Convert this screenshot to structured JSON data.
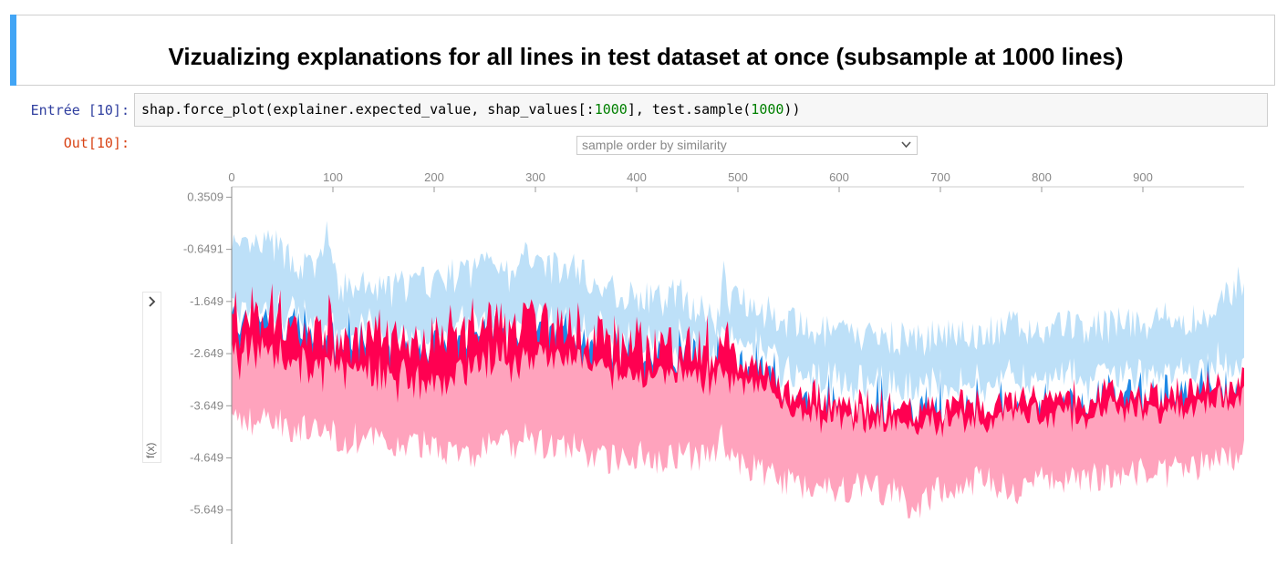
{
  "markdown": {
    "title": "Vizualizing explanations for all lines in test dataset at once (subsample at 1000 lines)"
  },
  "input_cell": {
    "prompt": "Entrée [10]:",
    "code_parts": [
      {
        "text": "shap.force_plot(explainer.expected_value, shap_values[:",
        "cls": ""
      },
      {
        "text": "1000",
        "cls": "num"
      },
      {
        "text": "], test.sample(",
        "cls": ""
      },
      {
        "text": "1000",
        "cls": "num"
      },
      {
        "text": "))",
        "cls": ""
      }
    ]
  },
  "output_cell": {
    "prompt": "Out[10]:",
    "ordering_select": {
      "selected": "sample order by similarity"
    },
    "yaxis_label": "f(x)"
  },
  "colors": {
    "positive_dark": "#ff0051",
    "positive_light": "#ffa3bd",
    "negative_dark": "#1e88e5",
    "negative_light": "#bde0f8",
    "prompt_in": "#303f9f",
    "prompt_out": "#d84315"
  },
  "chart_data": {
    "type": "area",
    "x_range": [
      0,
      1000
    ],
    "y_range": [
      -6.3,
      0.55
    ],
    "x_ticks": [
      0,
      100,
      200,
      300,
      400,
      500,
      600,
      700,
      800,
      900
    ],
    "y_ticks": [
      {
        "value": 0.3509,
        "label": "0.3509"
      },
      {
        "value": -0.6491,
        "label": "-0.6491"
      },
      {
        "value": -1.649,
        "label": "-1.649"
      },
      {
        "value": -2.649,
        "label": "-2.649"
      },
      {
        "value": -3.649,
        "label": "-3.649"
      },
      {
        "value": -4.649,
        "label": "-4.649"
      },
      {
        "value": -5.649,
        "label": "-5.649"
      }
    ],
    "envelope_x": [
      0,
      5,
      20,
      40,
      60,
      80,
      90,
      95,
      100,
      110,
      120,
      150,
      170,
      200,
      220,
      240,
      250,
      260,
      270,
      280,
      290,
      300,
      320,
      340,
      360,
      380,
      400,
      420,
      440,
      460,
      480,
      485,
      490,
      500,
      520,
      540,
      560,
      580,
      600,
      620,
      640,
      660,
      670,
      680,
      700,
      720,
      740,
      760,
      780,
      800,
      820,
      840,
      860,
      880,
      900,
      920,
      940,
      960,
      980,
      1000
    ],
    "upper": [
      -0.5,
      -0.9,
      -0.8,
      -0.7,
      -1.0,
      -1.2,
      -0.9,
      -0.3,
      -1.3,
      -1.6,
      -1.5,
      -1.6,
      -1.5,
      -1.4,
      -1.3,
      -1.2,
      -0.9,
      -0.8,
      -1.3,
      -1.4,
      -0.9,
      -0.8,
      -1.2,
      -1.1,
      -1.5,
      -1.6,
      -1.7,
      -1.8,
      -1.6,
      -1.9,
      -2.2,
      -1.2,
      -1.8,
      -1.6,
      -1.9,
      -2.1,
      -2.3,
      -2.4,
      -2.4,
      -2.5,
      -2.4,
      -2.5,
      -2.4,
      -2.6,
      -2.4,
      -2.3,
      -2.5,
      -2.3,
      -2.3,
      -2.4,
      -2.2,
      -2.3,
      -2.3,
      -2.2,
      -2.2,
      -2.1,
      -2.2,
      -2.1,
      -1.8,
      -1.3
    ],
    "red_lower": [
      -2.2,
      -2.4,
      -2.3,
      -2.3,
      -2.5,
      -2.6,
      -2.7,
      -2.4,
      -2.7,
      -2.8,
      -2.7,
      -2.8,
      -2.8,
      -2.8,
      -2.7,
      -2.6,
      -2.5,
      -2.4,
      -2.6,
      -2.7,
      -2.5,
      -2.5,
      -2.6,
      -2.6,
      -2.8,
      -2.9,
      -2.9,
      -3.0,
      -2.9,
      -3.0,
      -3.0,
      -2.6,
      -3.0,
      -3.0,
      -3.1,
      -3.4,
      -3.6,
      -3.7,
      -3.8,
      -3.8,
      -3.8,
      -3.9,
      -3.9,
      -3.9,
      -3.8,
      -3.8,
      -3.8,
      -3.7,
      -3.7,
      -3.8,
      -3.7,
      -3.7,
      -3.6,
      -3.6,
      -3.6,
      -3.6,
      -3.6,
      -3.5,
      -3.4,
      -3.2
    ],
    "lower": [
      -3.6,
      -3.8,
      -3.9,
      -3.8,
      -4.0,
      -4.1,
      -4.2,
      -3.9,
      -4.1,
      -4.3,
      -4.2,
      -4.3,
      -4.4,
      -4.3,
      -4.5,
      -4.6,
      -4.4,
      -4.2,
      -4.3,
      -4.5,
      -4.2,
      -4.3,
      -4.4,
      -4.4,
      -4.6,
      -4.6,
      -4.5,
      -4.6,
      -4.5,
      -4.6,
      -4.5,
      -4.0,
      -4.6,
      -4.7,
      -4.8,
      -5.0,
      -5.1,
      -5.1,
      -5.2,
      -5.1,
      -5.2,
      -5.3,
      -5.5,
      -5.5,
      -5.2,
      -5.1,
      -5.0,
      -5.1,
      -5.2,
      -5.0,
      -5.0,
      -5.1,
      -4.9,
      -4.9,
      -4.8,
      -4.9,
      -4.8,
      -4.7,
      -4.6,
      -4.5
    ]
  }
}
